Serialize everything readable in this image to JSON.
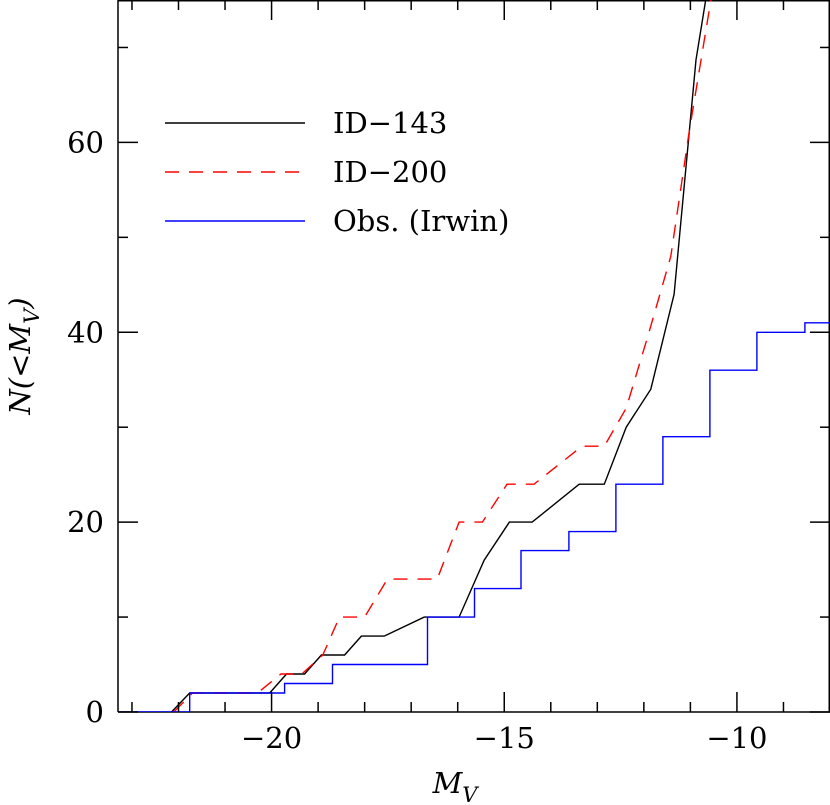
{
  "chart_data": {
    "type": "line",
    "xlabel": "M",
    "xlabel_sub": "V",
    "ylabel_parts": [
      "N(<M",
      "V",
      ")"
    ],
    "xlim": [
      -23.3,
      -8
    ],
    "ylim": [
      0,
      75
    ],
    "xticks": [
      {
        "value": -20,
        "label": "−20"
      },
      {
        "value": -15,
        "label": "−15"
      },
      {
        "value": -10,
        "label": "−10"
      }
    ],
    "yticks": [
      0,
      20,
      40,
      60
    ],
    "xminorticks": [
      -23,
      -22,
      -21,
      -19,
      -18,
      -17,
      -16,
      -14,
      -13,
      -12,
      -11,
      -9,
      -8
    ],
    "yminorticks": [
      10,
      30,
      50,
      70
    ],
    "legend": "upper left",
    "series": [
      {
        "name": "ID−143",
        "color": "#000000",
        "dash": false,
        "x": [
          -22.15,
          -21.76,
          -20.04,
          -19.68,
          -19.29,
          -18.93,
          -18.43,
          -18.07,
          -17.58,
          -16.72,
          -15.97,
          -15.43,
          -14.89,
          -14.4,
          -13.39,
          -12.85,
          -12.38,
          -11.85,
          -11.35,
          -10.88,
          -10.67
        ],
        "values": [
          0,
          2,
          2,
          4,
          4,
          6,
          6,
          8,
          8,
          10,
          10,
          16,
          20,
          20,
          24,
          24,
          30,
          34,
          44,
          68.7,
          75
        ]
      },
      {
        "name": "ID−200",
        "color": "#ff0000",
        "dash": true,
        "x": [
          -22.1,
          -21.7,
          -20.3,
          -19.8,
          -19.35,
          -18.9,
          -18.54,
          -18.0,
          -17.51,
          -16.44,
          -15.97,
          -15.47,
          -14.94,
          -14.36,
          -13.33,
          -12.85,
          -12.38,
          -11.89,
          -11.42,
          -11.03,
          -10.56
        ],
        "values": [
          0,
          2,
          2,
          4,
          4,
          6,
          10,
          10,
          14,
          14,
          20,
          20,
          24,
          24,
          28,
          28,
          32,
          40,
          48,
          61,
          75
        ]
      },
      {
        "name": "Obs. (Irwin)",
        "color": "#0000ff",
        "dash": false,
        "x": [
          -23.3,
          -21.76,
          -21.76,
          -19.72,
          -19.72,
          -18.69,
          -18.69,
          -16.65,
          -16.65,
          -15.64,
          -15.64,
          -14.64,
          -14.64,
          -13.61,
          -13.61,
          -12.6,
          -12.6,
          -11.59,
          -11.59,
          -10.58,
          -10.58,
          -9.57,
          -9.57,
          -8.54,
          -8.54,
          -8
        ],
        "values": [
          0,
          0,
          2,
          2,
          3,
          3,
          5,
          5,
          10,
          10,
          13,
          13,
          17,
          17,
          19,
          19,
          24,
          24,
          29,
          29,
          36,
          36,
          40,
          40,
          41,
          41
        ]
      }
    ]
  }
}
